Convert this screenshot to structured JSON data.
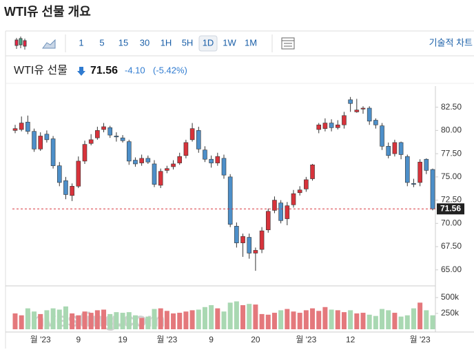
{
  "header": {
    "title": "WTI유 선물 개요"
  },
  "toolbar": {
    "intervals": [
      "1",
      "5",
      "15",
      "30",
      "1H",
      "5H",
      "1D",
      "1W",
      "1M"
    ],
    "selected": "1D",
    "technical": "기술적 차트"
  },
  "quote": {
    "name": "WTI유 선물",
    "price": 71.56,
    "change": "-4.10",
    "change_pct": "(-5.42%)"
  },
  "chart_data": {
    "type": "candlestick",
    "watermark": "Investing.com",
    "x": [
      null,
      null,
      null,
      null,
      "월 '23",
      null,
      null,
      null,
      null,
      null,
      "9",
      null,
      null,
      null,
      null,
      null,
      null,
      "19",
      null,
      null,
      null,
      null,
      null,
      null,
      "월 '23",
      null,
      null,
      null,
      null,
      null,
      null,
      "9",
      null,
      null,
      null,
      null,
      null,
      null,
      "20",
      null,
      null,
      null,
      null,
      null,
      null,
      null,
      "월 '23",
      null,
      null,
      null,
      null,
      null,
      null,
      "12",
      null,
      null,
      null,
      null,
      null,
      null,
      null,
      null,
      null,
      null,
      "월 '23",
      null,
      null
    ],
    "open": [
      80.0,
      80.1,
      80.9,
      79.9,
      78.0,
      79.6,
      79.1,
      76.2,
      74.6,
      73.0,
      74.0,
      76.7,
      78.6,
      79.2,
      80.1,
      80.3,
      79.4,
      79.2,
      78.8,
      76.8,
      76.5,
      77.0,
      76.4,
      74.1,
      75.7,
      76.1,
      76.5,
      77.3,
      79.0,
      80.0,
      77.9,
      76.9,
      76.5,
      77.0,
      75.0,
      69.7,
      67.9,
      68.5,
      66.8,
      67.2,
      69.3,
      71.4,
      72.2,
      70.5,
      72.0,
      73.3,
      73.7,
      74.8,
      80.1,
      80.2,
      80.8,
      80.3,
      80.6,
      83.3,
      82.0,
      82.3,
      82.4,
      81.1,
      80.5,
      78.3,
      77.5,
      78.7,
      77.2,
      74.3,
      74.4,
      76.9,
      75.8
    ],
    "high": [
      80.6,
      81.5,
      81.6,
      80.2,
      79.8,
      80.0,
      79.4,
      76.6,
      75.0,
      74.3,
      77.2,
      78.9,
      79.6,
      80.4,
      80.8,
      80.5,
      79.8,
      79.5,
      79.0,
      77.1,
      77.4,
      77.3,
      76.8,
      75.9,
      76.2,
      76.8,
      77.6,
      79.0,
      80.8,
      80.4,
      78.3,
      77.3,
      77.6,
      77.4,
      75.3,
      70.1,
      68.9,
      68.9,
      67.4,
      69.6,
      71.6,
      72.9,
      72.5,
      72.3,
      73.6,
      74.0,
      75.0,
      76.4,
      80.8,
      81.3,
      81.2,
      81.1,
      82.0,
      83.6,
      83.4,
      82.6,
      82.6,
      81.3,
      80.8,
      78.7,
      79.0,
      78.8,
      77.4,
      74.8,
      76.9,
      77.0,
      75.9
    ],
    "low": [
      79.7,
      79.9,
      79.6,
      77.7,
      77.8,
      78.7,
      75.9,
      74.0,
      72.6,
      72.4,
      73.8,
      76.4,
      78.4,
      79.0,
      79.8,
      79.2,
      78.8,
      78.7,
      76.3,
      76.1,
      76.2,
      76.4,
      73.9,
      73.8,
      75.4,
      75.8,
      76.3,
      77.0,
      78.8,
      77.6,
      76.6,
      76.0,
      76.2,
      74.8,
      69.6,
      67.4,
      66.4,
      66.2,
      64.9,
      66.8,
      69.0,
      71.1,
      70.0,
      69.8,
      71.7,
      73.0,
      73.4,
      74.6,
      79.7,
      79.9,
      79.9,
      80.1,
      80.2,
      82.0,
      81.9,
      81.8,
      80.6,
      80.2,
      77.9,
      77.0,
      77.2,
      76.9,
      74.0,
      73.9,
      74.0,
      75.3,
      71.4
    ],
    "close": [
      80.2,
      80.8,
      79.9,
      78.0,
      79.4,
      79.0,
      76.2,
      74.4,
      73.1,
      74.0,
      76.7,
      78.5,
      79.0,
      80.0,
      80.4,
      79.5,
      79.3,
      78.9,
      76.7,
      76.4,
      77.0,
      76.6,
      74.2,
      75.6,
      75.9,
      76.4,
      77.2,
      78.7,
      80.2,
      78.0,
      76.9,
      76.5,
      77.2,
      75.2,
      69.9,
      67.9,
      68.6,
      66.8,
      67.1,
      69.2,
      71.3,
      72.5,
      70.3,
      71.9,
      73.2,
      73.6,
      74.7,
      76.3,
      80.6,
      80.8,
      80.3,
      80.6,
      81.6,
      82.9,
      82.2,
      82.4,
      81.0,
      80.6,
      78.3,
      77.3,
      78.7,
      77.4,
      74.4,
      74.2,
      76.6,
      75.7,
      71.56
    ],
    "volume": [
      250000,
      220000,
      330000,
      280000,
      240000,
      300000,
      330000,
      310000,
      360000,
      250000,
      220000,
      280000,
      260000,
      300000,
      310000,
      240000,
      270000,
      260000,
      270000,
      220000,
      180000,
      200000,
      320000,
      330000,
      290000,
      250000,
      260000,
      280000,
      300000,
      310000,
      350000,
      380000,
      330000,
      280000,
      420000,
      440000,
      380000,
      400000,
      390000,
      240000,
      230000,
      260000,
      300000,
      320000,
      280000,
      260000,
      300000,
      330000,
      290000,
      350000,
      310000,
      300000,
      270000,
      300000,
      250000,
      260000,
      230000,
      210000,
      320000,
      300000,
      260000,
      200000,
      220000,
      330000,
      420000,
      300000,
      220000
    ],
    "ylim": [
      63.5,
      84.4
    ],
    "yticks": [
      {
        "value": 65,
        "label": "65.00"
      },
      {
        "value": 67.5,
        "label": "67.50"
      },
      {
        "value": 70,
        "label": "70.00"
      },
      {
        "value": 72.5,
        "label": "72.50"
      },
      {
        "value": 75,
        "label": "75.00"
      },
      {
        "value": 77.5,
        "label": "77.50"
      },
      {
        "value": 80,
        "label": "80.00"
      },
      {
        "value": 82.5,
        "label": "82.50"
      }
    ],
    "volume_ylim": [
      0,
      630000
    ],
    "volume_yticks": [
      {
        "value": 250000,
        "label": "250k"
      },
      {
        "value": 500000,
        "label": "500k"
      }
    ],
    "last_price": 71.56,
    "up_color": "#d7333b",
    "down_color": "#4d8fc9",
    "volume_up_color": "#e4787c",
    "volume_down_color": "#a9d8b2"
  }
}
